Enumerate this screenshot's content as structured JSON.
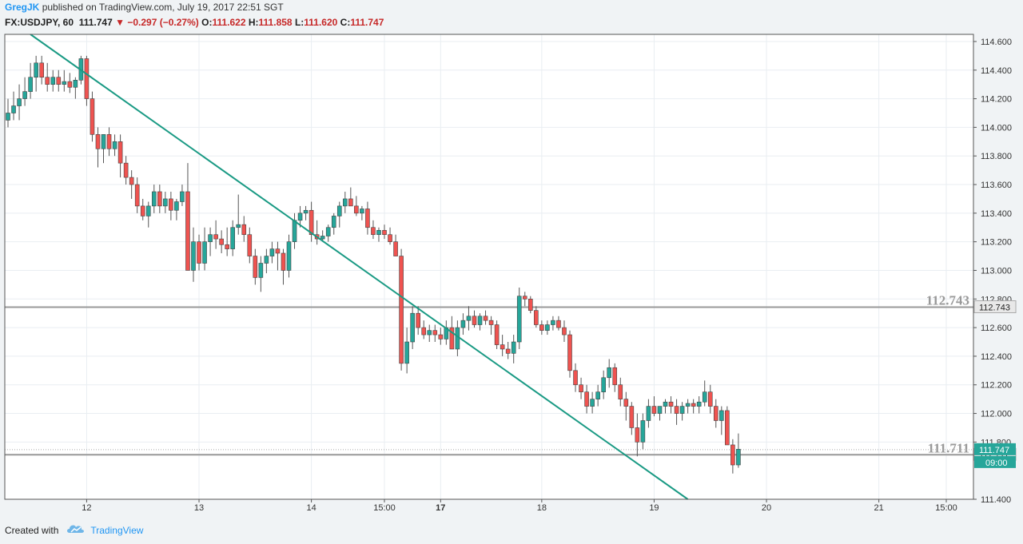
{
  "header": {
    "author": "GregJK",
    "published": "published on TradingView.com, July 19, 2017 22:51 SGT",
    "symbol": "FX:USDJPY, 60",
    "last": "111.747",
    "change_arrow": "▼",
    "change": "−0.297 (−0.27%)",
    "o_label": "O:",
    "o_val": "111.622",
    "h_label": "H:",
    "h_val": "111.858",
    "l_label": "L:",
    "l_val": "111.620",
    "c_label": "C:",
    "c_val": "111.747"
  },
  "footer": {
    "created_with": "Created with",
    "brand": "TradingView",
    "logo_icon": "tradingview-cloud-icon"
  },
  "colors": {
    "up": "#26a69a",
    "down": "#ef5350",
    "trend": "#1a9a84",
    "level": "#999999",
    "badge_last": "#26a69a"
  },
  "chart_data": {
    "type": "candlestick",
    "symbol": "USDJPY",
    "interval": "60",
    "ylim": [
      111.4,
      114.65
    ],
    "y_ticks": [
      "114.600",
      "114.400",
      "114.200",
      "114.000",
      "113.800",
      "113.600",
      "113.400",
      "113.200",
      "113.000",
      "112.800",
      "112.600",
      "112.400",
      "112.200",
      "112.000",
      "111.800",
      "111.400"
    ],
    "x_ticks": [
      "12",
      "13",
      "14",
      "15:00",
      "17",
      "18",
      "19",
      "20",
      "21",
      "15:00"
    ],
    "bold_x_ticks": [
      "17"
    ],
    "levels": [
      {
        "price": 112.743,
        "label": "112.743"
      },
      {
        "price": 111.711,
        "label": "111.711"
      }
    ],
    "trendline": {
      "from": {
        "bar": 4,
        "price": 114.65
      },
      "to": {
        "bar": 121,
        "price": 111.4
      }
    },
    "last_price_label": "111.747",
    "countdown_label": "09:00",
    "candles": [
      [
        114.05,
        114.2,
        114.0,
        114.1
      ],
      [
        114.1,
        114.25,
        114.05,
        114.15
      ],
      [
        114.15,
        114.3,
        114.05,
        114.2
      ],
      [
        114.2,
        114.35,
        114.15,
        114.25
      ],
      [
        114.25,
        114.45,
        114.2,
        114.35
      ],
      [
        114.35,
        114.5,
        114.25,
        114.45
      ],
      [
        114.45,
        114.5,
        114.3,
        114.35
      ],
      [
        114.35,
        114.45,
        114.25,
        114.3
      ],
      [
        114.3,
        114.4,
        114.25,
        114.35
      ],
      [
        114.35,
        114.4,
        114.25,
        114.3
      ],
      [
        114.3,
        114.4,
        114.25,
        114.32
      ],
      [
        114.32,
        114.38,
        114.24,
        114.28
      ],
      [
        114.28,
        114.35,
        114.2,
        114.33
      ],
      [
        114.33,
        114.5,
        114.3,
        114.48
      ],
      [
        114.48,
        114.5,
        114.15,
        114.2
      ],
      [
        114.2,
        114.25,
        113.9,
        113.95
      ],
      [
        113.95,
        114.0,
        113.72,
        113.85
      ],
      [
        113.85,
        113.95,
        113.75,
        113.95
      ],
      [
        113.95,
        114.0,
        113.8,
        113.85
      ],
      [
        113.85,
        113.95,
        113.8,
        113.9
      ],
      [
        113.9,
        113.95,
        113.65,
        113.75
      ],
      [
        113.75,
        113.8,
        113.6,
        113.65
      ],
      [
        113.65,
        113.7,
        113.5,
        113.6
      ],
      [
        113.6,
        113.65,
        113.4,
        113.45
      ],
      [
        113.45,
        113.5,
        113.35,
        113.38
      ],
      [
        113.38,
        113.48,
        113.3,
        113.45
      ],
      [
        113.45,
        113.6,
        113.4,
        113.55
      ],
      [
        113.55,
        113.6,
        113.4,
        113.45
      ],
      [
        113.45,
        113.55,
        113.4,
        113.5
      ],
      [
        113.5,
        113.55,
        113.35,
        113.42
      ],
      [
        113.42,
        113.5,
        113.35,
        113.48
      ],
      [
        113.48,
        113.6,
        113.45,
        113.55
      ],
      [
        113.55,
        113.75,
        113.0,
        113.0
      ],
      [
        113.0,
        113.3,
        112.92,
        113.2
      ],
      [
        113.2,
        113.25,
        113.0,
        113.05
      ],
      [
        113.05,
        113.3,
        113.0,
        113.2
      ],
      [
        113.2,
        113.3,
        113.1,
        113.25
      ],
      [
        113.25,
        113.35,
        113.15,
        113.22
      ],
      [
        113.22,
        113.28,
        113.12,
        113.18
      ],
      [
        113.18,
        113.3,
        113.1,
        113.15
      ],
      [
        113.15,
        113.35,
        113.1,
        113.3
      ],
      [
        113.3,
        113.53,
        113.25,
        113.32
      ],
      [
        113.32,
        113.38,
        113.2,
        113.25
      ],
      [
        113.25,
        113.3,
        113.05,
        113.1
      ],
      [
        113.1,
        113.15,
        112.9,
        112.95
      ],
      [
        112.95,
        113.1,
        112.85,
        113.05
      ],
      [
        113.05,
        113.15,
        112.98,
        113.1
      ],
      [
        113.1,
        113.2,
        113.05,
        113.15
      ],
      [
        113.15,
        113.2,
        113.0,
        113.12
      ],
      [
        113.12,
        113.15,
        112.9,
        113.0
      ],
      [
        113.0,
        113.25,
        112.95,
        113.2
      ],
      [
        113.2,
        113.4,
        113.15,
        113.35
      ],
      [
        113.35,
        113.45,
        113.3,
        113.4
      ],
      [
        113.4,
        113.45,
        113.35,
        113.42
      ],
      [
        113.42,
        113.48,
        113.2,
        113.25
      ],
      [
        113.25,
        113.35,
        113.18,
        113.22
      ],
      [
        113.22,
        113.28,
        113.2,
        113.24
      ],
      [
        113.24,
        113.32,
        113.2,
        113.3
      ],
      [
        113.3,
        113.4,
        113.25,
        113.38
      ],
      [
        113.38,
        113.48,
        113.3,
        113.45
      ],
      [
        113.45,
        113.55,
        113.4,
        113.5
      ],
      [
        113.5,
        113.58,
        113.45,
        113.45
      ],
      [
        113.45,
        113.52,
        113.38,
        113.4
      ],
      [
        113.4,
        113.45,
        113.35,
        113.43
      ],
      [
        113.43,
        113.48,
        113.25,
        113.3
      ],
      [
        113.3,
        113.35,
        113.22,
        113.25
      ],
      [
        113.25,
        113.3,
        113.2,
        113.28
      ],
      [
        113.28,
        113.32,
        113.22,
        113.25
      ],
      [
        113.25,
        113.3,
        113.18,
        113.2
      ],
      [
        113.2,
        113.25,
        113.1,
        113.1
      ],
      [
        113.1,
        113.15,
        112.3,
        112.35
      ],
      [
        112.35,
        112.6,
        112.28,
        112.5
      ],
      [
        112.5,
        112.75,
        112.45,
        112.7
      ],
      [
        112.7,
        112.75,
        112.55,
        112.6
      ],
      [
        112.6,
        112.65,
        112.52,
        112.55
      ],
      [
        112.55,
        112.62,
        112.5,
        112.58
      ],
      [
        112.58,
        112.62,
        112.5,
        112.55
      ],
      [
        112.55,
        112.6,
        112.48,
        112.52
      ],
      [
        112.52,
        112.65,
        112.48,
        112.6
      ],
      [
        112.6,
        112.68,
        112.45,
        112.45
      ],
      [
        112.45,
        112.65,
        112.4,
        112.6
      ],
      [
        112.6,
        112.7,
        112.55,
        112.65
      ],
      [
        112.65,
        112.75,
        112.58,
        112.68
      ],
      [
        112.68,
        112.72,
        112.6,
        112.62
      ],
      [
        112.62,
        112.7,
        112.58,
        112.68
      ],
      [
        112.68,
        112.72,
        112.62,
        112.65
      ],
      [
        112.65,
        112.68,
        112.55,
        112.62
      ],
      [
        112.62,
        112.65,
        112.45,
        112.48
      ],
      [
        112.48,
        112.55,
        112.4,
        112.45
      ],
      [
        112.45,
        112.5,
        112.38,
        112.42
      ],
      [
        112.42,
        112.55,
        112.35,
        112.5
      ],
      [
        112.5,
        112.88,
        112.45,
        112.82
      ],
      [
        112.82,
        112.85,
        112.75,
        112.8
      ],
      [
        112.8,
        112.82,
        112.7,
        112.72
      ],
      [
        112.72,
        112.75,
        112.6,
        112.62
      ],
      [
        112.62,
        112.65,
        112.55,
        112.58
      ],
      [
        112.58,
        112.65,
        112.55,
        112.62
      ],
      [
        112.62,
        112.68,
        112.58,
        112.65
      ],
      [
        112.65,
        112.68,
        112.58,
        112.6
      ],
      [
        112.6,
        112.65,
        112.5,
        112.55
      ],
      [
        112.55,
        112.58,
        112.25,
        112.3
      ],
      [
        112.3,
        112.35,
        112.15,
        112.2
      ],
      [
        112.2,
        112.25,
        112.1,
        112.15
      ],
      [
        112.15,
        112.2,
        112.0,
        112.05
      ],
      [
        112.05,
        112.15,
        112.0,
        112.1
      ],
      [
        112.1,
        112.2,
        112.05,
        112.15
      ],
      [
        112.15,
        112.3,
        112.1,
        112.25
      ],
      [
        112.25,
        112.38,
        112.18,
        112.32
      ],
      [
        112.32,
        112.35,
        112.15,
        112.2
      ],
      [
        112.2,
        112.25,
        112.05,
        112.1
      ],
      [
        112.1,
        112.15,
        111.95,
        112.05
      ],
      [
        112.05,
        112.08,
        111.85,
        111.9
      ],
      [
        111.9,
        112.0,
        111.7,
        111.8
      ],
      [
        111.8,
        112.0,
        111.75,
        111.95
      ],
      [
        111.95,
        112.1,
        111.9,
        112.05
      ],
      [
        112.05,
        112.12,
        111.98,
        112.0
      ],
      [
        112.0,
        112.05,
        111.95,
        112.05
      ],
      [
        112.05,
        112.1,
        112.0,
        112.08
      ],
      [
        112.08,
        112.12,
        112.0,
        112.05
      ],
      [
        112.05,
        112.1,
        111.92,
        112.0
      ],
      [
        112.0,
        112.08,
        111.95,
        112.05
      ],
      [
        112.05,
        112.1,
        112.0,
        112.07
      ],
      [
        112.07,
        112.1,
        112.0,
        112.05
      ],
      [
        112.05,
        112.12,
        112.0,
        112.08
      ],
      [
        112.08,
        112.23,
        112.05,
        112.15
      ],
      [
        112.15,
        112.2,
        112.0,
        112.05
      ],
      [
        112.05,
        112.1,
        111.9,
        111.95
      ],
      [
        111.95,
        112.05,
        111.85,
        112.02
      ],
      [
        112.02,
        112.05,
        111.8,
        111.78
      ],
      [
        111.78,
        111.82,
        111.58,
        111.64
      ],
      [
        111.64,
        111.86,
        111.62,
        111.75
      ]
    ]
  }
}
